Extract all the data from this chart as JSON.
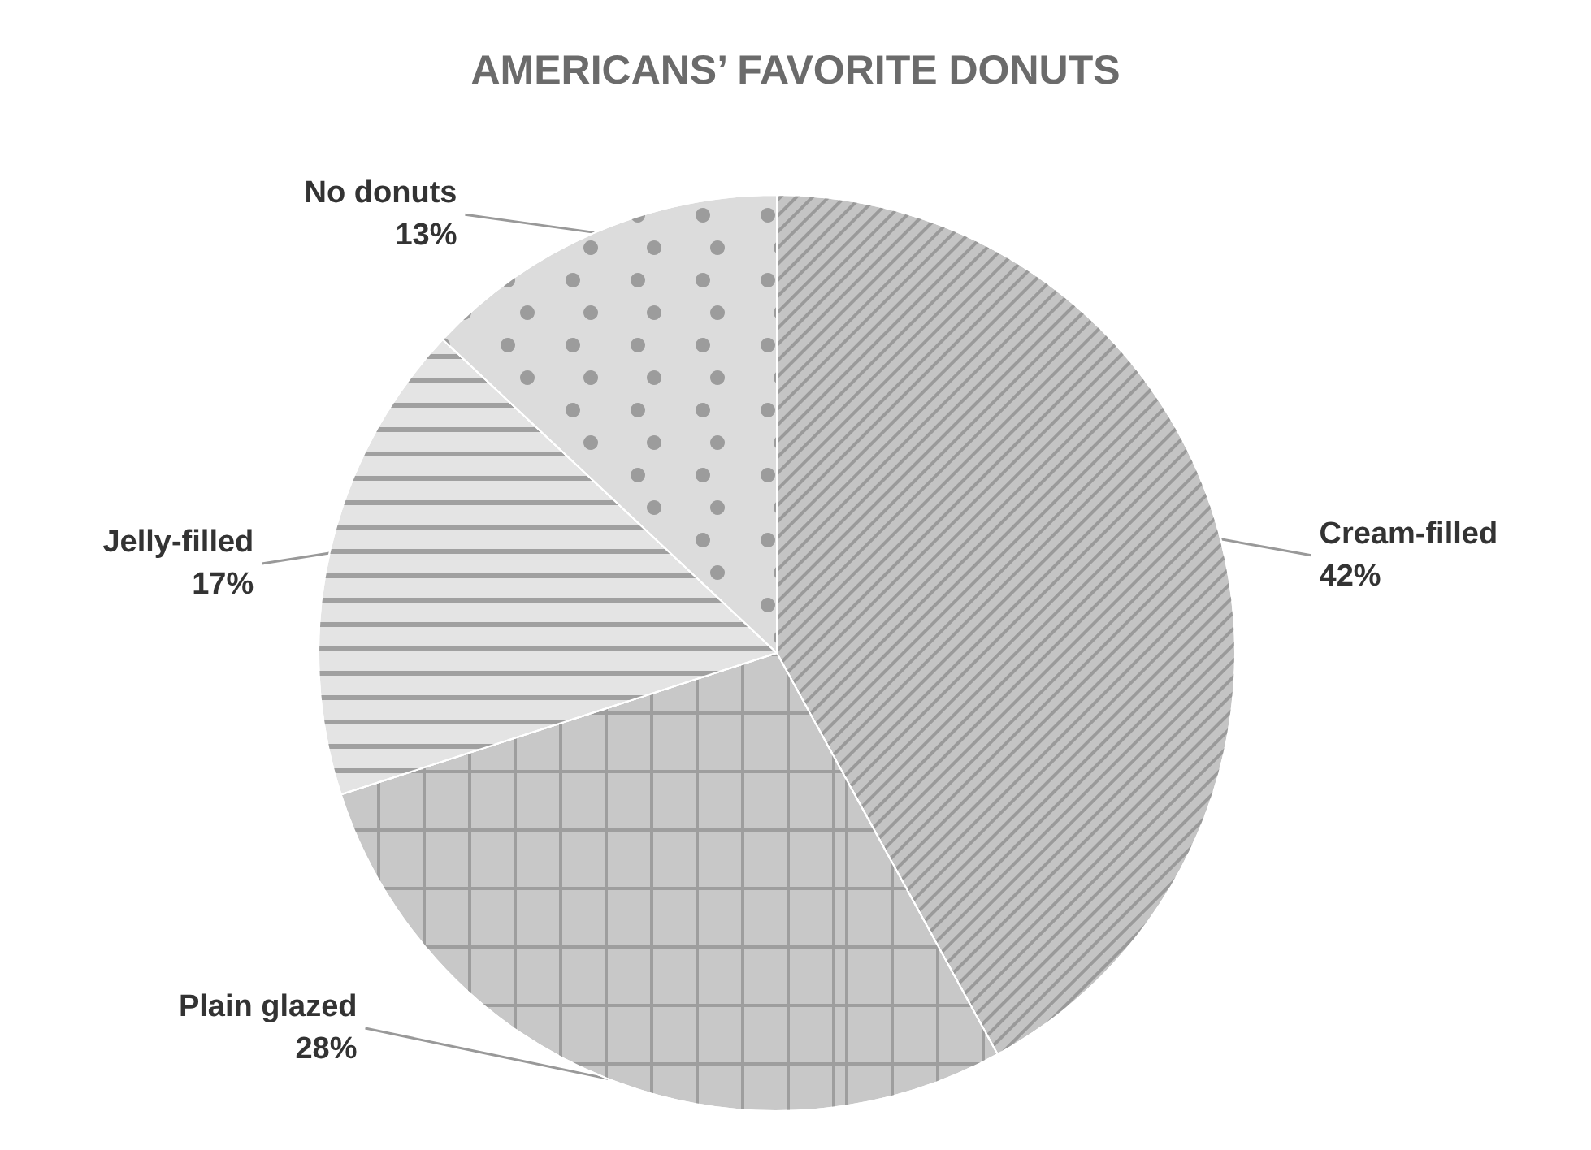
{
  "chart_data": {
    "type": "pie",
    "title": "AMERICANS’ FAVORITE DONUTS",
    "categories": [
      "Cream-filled",
      "Plain glazed",
      "Jelly-filled",
      "No donuts"
    ],
    "values": [
      42,
      28,
      17,
      13
    ],
    "colors": [
      "#c4c4c4",
      "#c8c8c8",
      "#e4e4e4",
      "#dcdcdc"
    ],
    "value_labels": [
      "42%",
      "28%",
      "17%",
      "13%"
    ]
  }
}
